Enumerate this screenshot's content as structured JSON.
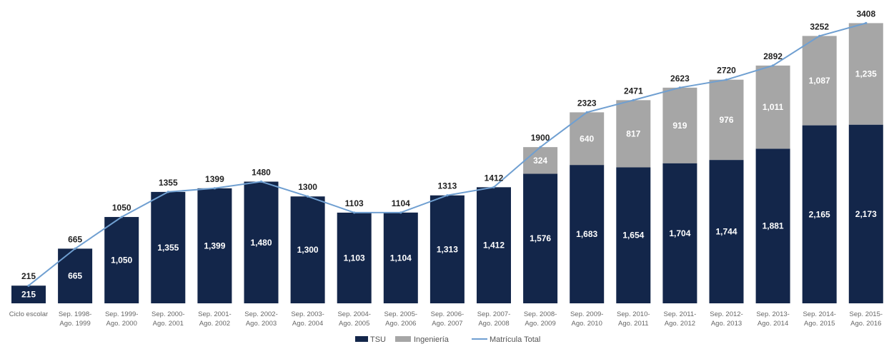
{
  "chart_data": {
    "type": "bar",
    "stacked": true,
    "title": "",
    "xlabel": "",
    "ylabel": "",
    "ylim": [
      0,
      3500
    ],
    "grid": false,
    "legend_position": "bottom-center",
    "categories": [
      [
        "Ciclo escolar"
      ],
      [
        "Sep. 1998-",
        "Ago. 1999"
      ],
      [
        "Sep. 1999-",
        "Ago. 2000"
      ],
      [
        "Sep. 2000-",
        "Ago. 2001"
      ],
      [
        "Sep. 2001-",
        "Ago. 2002"
      ],
      [
        "Sep. 2002-",
        "Ago. 2003"
      ],
      [
        "Sep. 2003-",
        "Ago. 2004"
      ],
      [
        "Sep. 2004-",
        "Ago. 2005"
      ],
      [
        "Sep. 2005-",
        "Ago. 2006"
      ],
      [
        "Sep. 2006-",
        "Ago. 2007"
      ],
      [
        "Sep. 2007-",
        "Ago. 2008"
      ],
      [
        "Sep. 2008-",
        "Ago. 2009"
      ],
      [
        "Sep. 2009-",
        "Ago. 2010"
      ],
      [
        "Sep. 2010-",
        "Ago. 2011"
      ],
      [
        "Sep. 2011-",
        "Ago. 2012"
      ],
      [
        "Sep. 2012-",
        "Ago. 2013"
      ],
      [
        "Sep. 2013-",
        "Ago. 2014"
      ],
      [
        "Sep. 2014-",
        "Ago. 2015"
      ],
      [
        "Sep. 2015-",
        "Ago. 2016"
      ]
    ],
    "series": [
      {
        "name": "TSU",
        "kind": "bar",
        "color": "#13264a",
        "values": [
          215,
          665,
          1050,
          1355,
          1399,
          1480,
          1300,
          1103,
          1104,
          1313,
          1412,
          1576,
          1683,
          1654,
          1704,
          1744,
          1881,
          2165,
          2173
        ],
        "labels": [
          "215",
          "665",
          "1,050",
          "1,355",
          "1,399",
          "1,480",
          "1,300",
          "1,103",
          "1,104",
          "1,313",
          "1,412",
          "1,576",
          "1,683",
          "1,654",
          "1,704",
          "1,744",
          "1,881",
          "2,165",
          "2,173"
        ]
      },
      {
        "name": "Ingeniería",
        "kind": "bar",
        "color": "#a6a6a6",
        "values": [
          null,
          null,
          null,
          null,
          null,
          null,
          null,
          null,
          null,
          null,
          null,
          324,
          640,
          817,
          919,
          976,
          1011,
          1087,
          1235
        ],
        "labels": [
          "",
          "",
          "",
          "",
          "",
          "",
          "",
          "",
          "",
          "",
          "",
          "324",
          "640",
          "817",
          "919",
          "976",
          "1,011",
          "1,087",
          "1,235"
        ]
      },
      {
        "name": "Matrícula Total",
        "kind": "line",
        "color": "#6f9fd1",
        "values": [
          215,
          665,
          1050,
          1355,
          1399,
          1480,
          1300,
          1103,
          1104,
          1313,
          1412,
          1900,
          2323,
          2471,
          2623,
          2720,
          2892,
          3252,
          3408
        ],
        "labels": [
          "215",
          "665",
          "1050",
          "1355",
          "1399",
          "1480",
          "1300",
          "1103",
          "1104",
          "1313",
          "1412",
          "1900",
          "2323",
          "2471",
          "2623",
          "2720",
          "2892",
          "3252",
          "3408"
        ]
      }
    ]
  }
}
